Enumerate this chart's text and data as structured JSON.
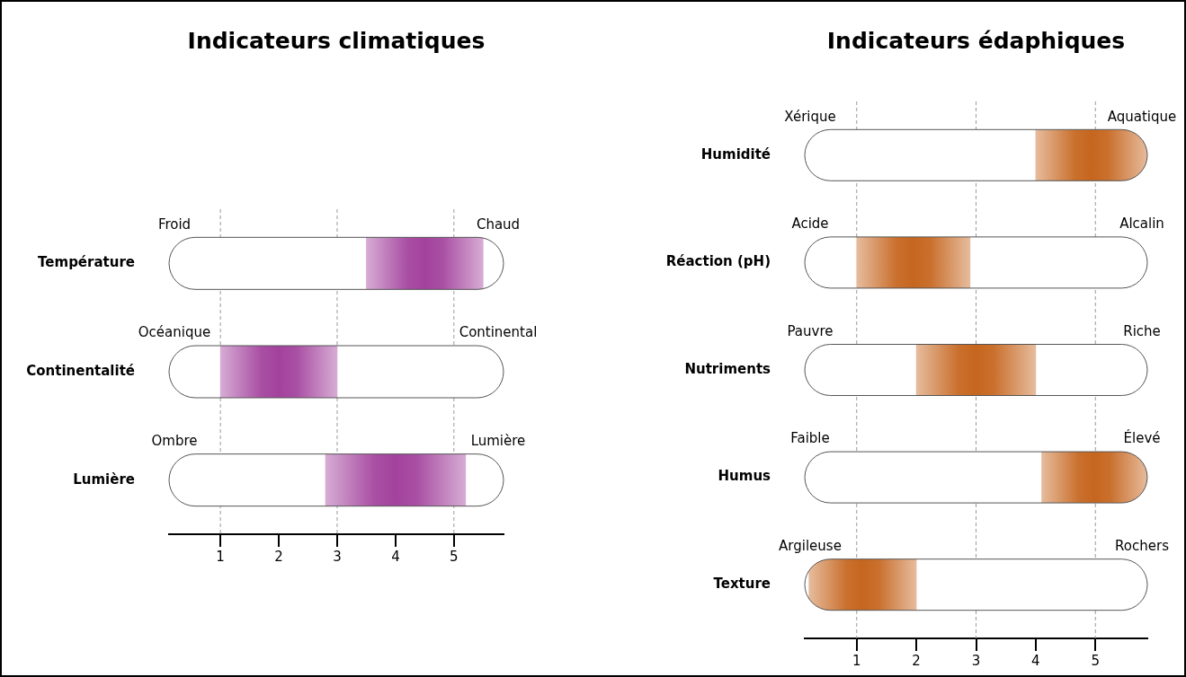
{
  "chart_data": [
    {
      "type": "bar",
      "orientation": "horizontal",
      "title": "Indicateurs climatiques",
      "categories": [
        "Température",
        "Continentalité",
        "Lumière"
      ],
      "base": [
        3.5,
        1.0,
        2.8
      ],
      "values": [
        2.0,
        2.0,
        2.4
      ],
      "color": "#a3429d",
      "xlim": [
        0.12,
        5.85
      ],
      "xticks": [
        1,
        2,
        3,
        4,
        5
      ],
      "legend": false,
      "grid": false,
      "ref_lines": [
        {
          "axis": "x",
          "value": 1,
          "color": "#999999",
          "line_style": "dashed"
        },
        {
          "axis": "x",
          "value": 3,
          "color": "#999999",
          "line_style": "dashed"
        },
        {
          "axis": "x",
          "value": 5,
          "color": "#999999",
          "line_style": "dashed"
        }
      ],
      "annotations": [
        "Froid",
        "Chaud",
        "Océanique",
        "Continental",
        "Ombre",
        "Lumière"
      ]
    },
    {
      "type": "bar",
      "orientation": "horizontal",
      "title": "Indicateurs édaphiques",
      "categories": [
        "Humidité",
        "Réaction (pH)",
        "Nutriments",
        "Humus",
        "Texture"
      ],
      "base": [
        4.0,
        1.0,
        2.0,
        4.1,
        0.2
      ],
      "values": [
        1.87,
        1.9,
        2.0,
        1.77,
        1.8
      ],
      "color": "#c6661f",
      "xlim": [
        0.13,
        5.87
      ],
      "xticks": [
        1,
        2,
        3,
        4,
        5
      ],
      "legend": false,
      "grid": false,
      "ref_lines": [
        {
          "axis": "x",
          "value": 1,
          "color": "#999999",
          "line_style": "dashed"
        },
        {
          "axis": "x",
          "value": 3,
          "color": "#999999",
          "line_style": "dashed"
        },
        {
          "axis": "x",
          "value": 5,
          "color": "#999999",
          "line_style": "dashed"
        }
      ],
      "annotations": [
        "Xérique",
        "Aquatique",
        "Acide",
        "Alcalin",
        "Pauvre",
        "Riche",
        "Faible",
        "Élevé",
        "Argileuse",
        "Rochers"
      ]
    }
  ]
}
